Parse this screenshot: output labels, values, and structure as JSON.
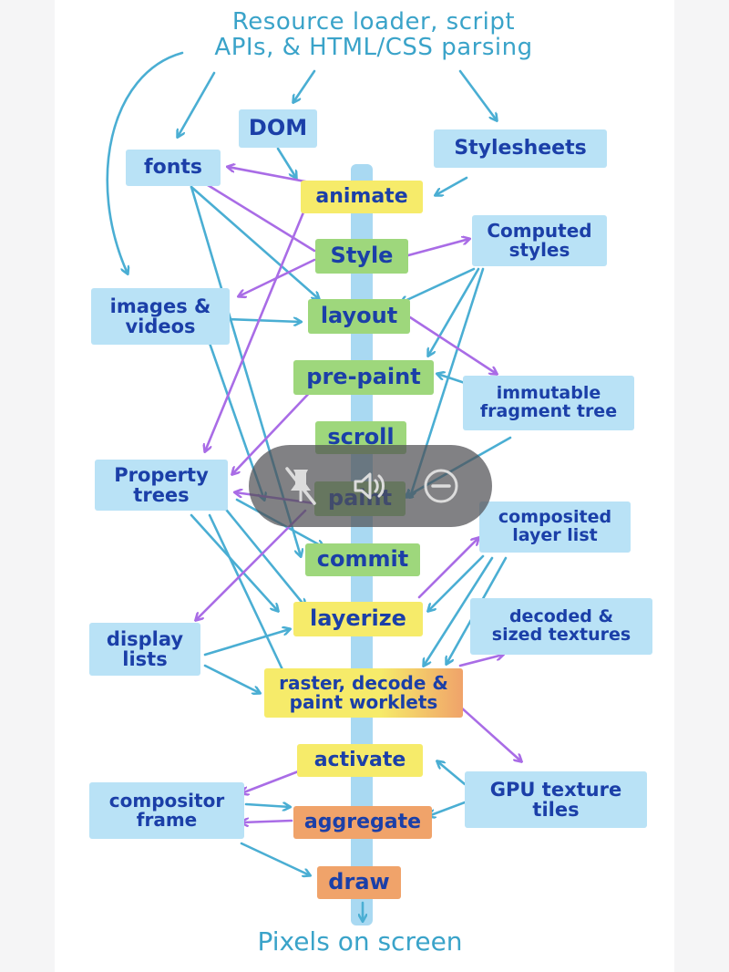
{
  "title_lines": [
    "Resource loader, script",
    "APIs, & HTML/CSS parsing"
  ],
  "footer": "Pixels on screen",
  "pipeline": {
    "animate": "animate",
    "style": "Style",
    "layout": "layout",
    "prepaint": "pre-paint",
    "scroll": "scroll",
    "paint": "paint",
    "commit": "commit",
    "layerize": "layerize",
    "raster_line1": "raster, decode &",
    "raster_line2": "paint worklets",
    "activate": "activate",
    "aggregate": "aggregate",
    "draw": "draw"
  },
  "data_boxes": {
    "dom": "DOM",
    "stylesheets": "Stylesheets",
    "fonts": "fonts",
    "computed_line1": "Computed",
    "computed_line2": "styles",
    "images_line1": "images &",
    "images_line2": "videos",
    "immutable_line1": "immutable",
    "immutable_line2": "fragment tree",
    "property_line1": "Property",
    "property_line2": "trees",
    "composited_line1": "composited",
    "composited_line2": "layer list",
    "display_line1": "display",
    "display_line2": "lists",
    "decoded_line1": "decoded &",
    "decoded_line2": "sized textures",
    "compositor_line1": "compositor",
    "compositor_line2": "frame",
    "gpu_line1": "GPU texture",
    "gpu_line2": "tiles"
  },
  "colors": {
    "stage_green": "#9ed77c",
    "stage_yellow": "#f6eb6a",
    "stage_orange": "#f0a36a",
    "data_blue": "#b9e2f6",
    "text_navy": "#1b3fa8",
    "arrow_blue": "#4aaed3",
    "arrow_purple": "#a96ce6"
  },
  "overlay_icons": [
    "unpin-icon",
    "volume-icon",
    "minus-circle-icon"
  ]
}
